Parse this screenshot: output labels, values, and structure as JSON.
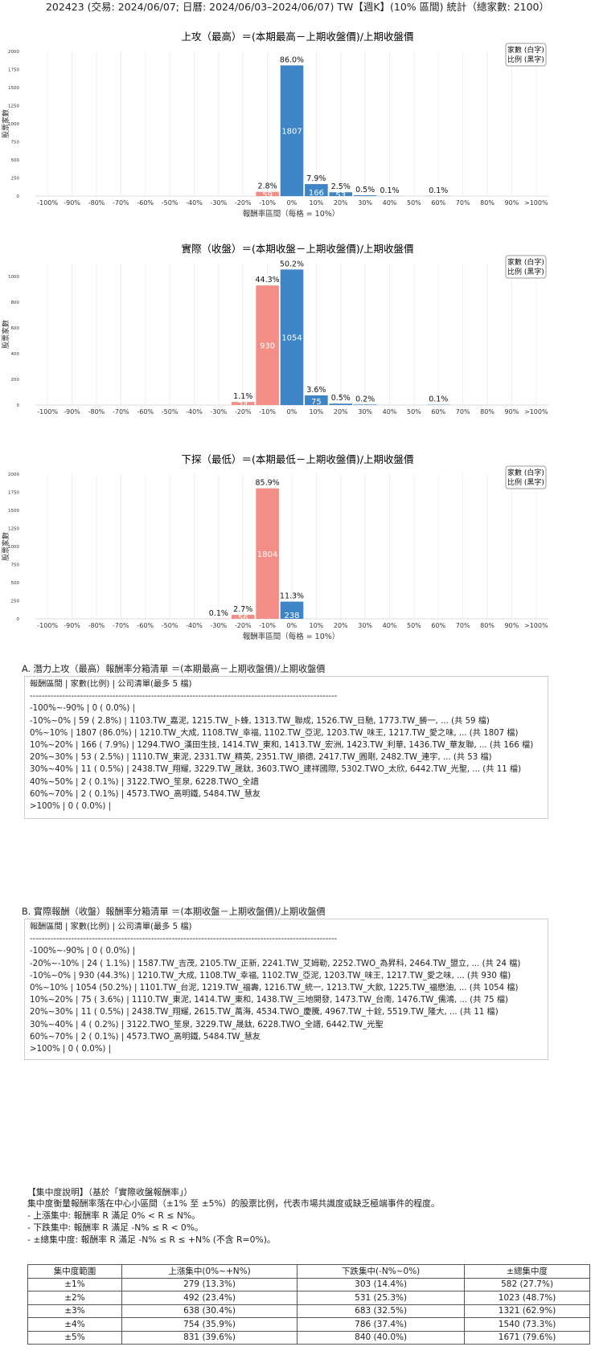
{
  "title": "202423 (交易: 2024/06/07; 日曆: 2024/06/03–2024/06/07) TW【週K】(10% 區間) 統計（總家數: 2100）",
  "colors": {
    "positive": "#3d85c6",
    "negative": "#f28e86",
    "grid": "#eeeeee"
  },
  "legend": [
    "家數 (白字)",
    "比例 (黑字)"
  ],
  "chart_data": [
    {
      "type": "bar",
      "title": "上攻（最高）＝(本期最高－上期收盤價)/上期收盤價",
      "xlabel": "報酬率區間（每格 = 10%）",
      "ylabel": "股票家數",
      "categories": [
        "-100%",
        "-90%",
        "-80%",
        "-70%",
        "-60%",
        "-50%",
        "-40%",
        "-30%",
        "-20%",
        "-10%",
        "0%",
        "10%",
        "20%",
        "30%",
        "40%",
        "50%",
        "60%",
        "70%",
        "80%",
        "90%",
        ">100%"
      ],
      "values": [
        0,
        0,
        0,
        0,
        0,
        0,
        0,
        0,
        0,
        59,
        1807,
        166,
        53,
        11,
        2,
        0,
        2,
        0,
        0,
        0,
        0
      ],
      "pct_labels": [
        "",
        "",
        "",
        "",
        "",
        "",
        "",
        "",
        "",
        "2.8%",
        "86.0%",
        "7.9%",
        "2.5%",
        "0.5%",
        "0.1%",
        "",
        "0.1%",
        "",
        "",
        "",
        ""
      ],
      "count_labels": [
        "",
        "",
        "",
        "",
        "",
        "",
        "",
        "",
        "",
        "59",
        "1807",
        "166",
        "53",
        "",
        "",
        "",
        "",
        "",
        "",
        "",
        ""
      ],
      "yticks": [
        0,
        250,
        500,
        750,
        1000,
        1250,
        1500,
        1750,
        2000
      ],
      "ylim": [
        0,
        2000
      ]
    },
    {
      "type": "bar",
      "title": "實際（收盤）＝(本期收盤－上期收盤價)/上期收盤價",
      "xlabel": "",
      "ylabel": "股票家數",
      "categories": [
        "-100%",
        "-90%",
        "-80%",
        "-70%",
        "-60%",
        "-50%",
        "-40%",
        "-30%",
        "-20%",
        "-10%",
        "0%",
        "10%",
        "20%",
        "30%",
        "40%",
        "50%",
        "60%",
        "70%",
        "80%",
        "90%",
        ">100%"
      ],
      "values": [
        0,
        0,
        0,
        0,
        0,
        0,
        0,
        0,
        24,
        930,
        1054,
        75,
        11,
        4,
        0,
        0,
        2,
        0,
        0,
        0,
        0
      ],
      "pct_labels": [
        "",
        "",
        "",
        "",
        "",
        "",
        "",
        "",
        "1.1%",
        "44.3%",
        "50.2%",
        "3.6%",
        "0.5%",
        "0.2%",
        "",
        "",
        "0.1%",
        "",
        "",
        "",
        ""
      ],
      "count_labels": [
        "",
        "",
        "",
        "",
        "",
        "",
        "",
        "",
        "24",
        "930",
        "1054",
        "75",
        "",
        "",
        "",
        "",
        "",
        "",
        "",
        "",
        ""
      ],
      "yticks": [
        0,
        200,
        400,
        600,
        800,
        1000
      ],
      "ylim": [
        0,
        1100
      ]
    },
    {
      "type": "bar",
      "title": "下探（最低）＝(本期最低－上期收盤價)/上期收盤價",
      "xlabel": "報酬率區間（每格 = 10%）",
      "ylabel": "股票家數",
      "categories": [
        "-100%",
        "-90%",
        "-80%",
        "-70%",
        "-60%",
        "-50%",
        "-40%",
        "-30%",
        "-20%",
        "-10%",
        "0%",
        "10%",
        "20%",
        "30%",
        "40%",
        "50%",
        "60%",
        "70%",
        "80%",
        "90%",
        ">100%"
      ],
      "values": [
        0,
        0,
        0,
        0,
        0,
        0,
        0,
        2,
        56,
        1804,
        238,
        0,
        0,
        0,
        0,
        0,
        0,
        0,
        0,
        0,
        0
      ],
      "pct_labels": [
        "",
        "",
        "",
        "",
        "",
        "",
        "",
        "0.1%",
        "2.7%",
        "85.9%",
        "11.3%",
        "",
        "",
        "",
        "",
        "",
        "",
        "",
        "",
        "",
        ""
      ],
      "count_labels": [
        "",
        "",
        "",
        "",
        "",
        "",
        "",
        "",
        "56",
        "1804",
        "238",
        "",
        "",
        "",
        "",
        "",
        "",
        "",
        "",
        "",
        ""
      ],
      "yticks": [
        0,
        250,
        500,
        750,
        1000,
        1250,
        1500,
        1750,
        2000
      ],
      "ylim": [
        0,
        2000
      ]
    }
  ],
  "section_a": {
    "title": "A. 潛力上攻（最高）報酬率分箱清單 ＝(本期最高－上期收盤價)/上期收盤價",
    "lines": [
      "報酬區間     | 家數(比例)       | 公司清單(最多 5 檔)",
      "--------------------------------------------------------------------------------------------------------",
      "-100%~-90%   |    0 ( 0.0%) |",
      "-10%~0%      |   59 ( 2.8%) | 1103.TW_嘉泥, 1215.TW_卜蜂, 1313.TW_聯成, 1526.TW_日馳, 1773.TW_勝一, ... (共 59 檔)",
      "0%~10%       | 1807 (86.0%) | 1210.TW_大成, 1108.TW_幸福, 1102.TW_亞泥, 1203.TW_味王, 1217.TW_愛之味, ... (共 1807 檔)",
      "10%~20%      |  166 ( 7.9%) | 1294.TWO_漢田生技, 1414.TW_東和, 1413.TW_宏洲, 1423.TW_利華, 1436.TW_華友聯, ... (共 166 檔)",
      "20%~30%      |   53 ( 2.5%) | 1110.TW_東泥, 2331.TW_精英, 2351.TW_順德, 2417.TW_圓剛, 2482.TW_連宇, ... (共 53 檔)",
      "30%~40%      |   11 ( 0.5%) | 2438.TW_翔耀, 3229.TW_晟鈦, 3603.TWO_建祥國際, 5302.TWO_太欣, 6442.TW_光聖, ... (共 11 檔)",
      "40%~50%      |    2 ( 0.1%) | 3122.TWO_笙泉, 6228.TWO_全譜",
      "60%~70%      |    2 ( 0.1%) | 4573.TWO_高明鐵, 5484.TW_慧友",
      ">100%        |    0 ( 0.0%) |"
    ]
  },
  "section_b": {
    "title": "B. 實際報酬（收盤）報酬率分箱清單 ＝(本期收盤－上期收盤價)/上期收盤價",
    "lines": [
      "報酬區間     | 家數(比例)       | 公司清單(最多 5 檔)",
      "--------------------------------------------------------------------------------------------------------",
      "-100%~-90%   |    0 ( 0.0%) |",
      "-20%~-10%    |   24 ( 1.1%) | 1587.TW_吉茂, 2105.TW_正新, 2241.TW_艾姆勒, 2252.TWO_為昇科, 2464.TW_盟立, ... (共 24 檔)",
      "-10%~0%      |  930 (44.3%) | 1210.TW_大成, 1108.TW_幸福, 1102.TW_亞泥, 1203.TW_味王, 1217.TW_愛之味, ... (共 930 檔)",
      "0%~10%       | 1054 (50.2%) | 1101.TW_台泥, 1219.TW_福壽, 1216.TW_統一, 1213.TW_大飲, 1225.TW_福懋油, ... (共 1054 檔)",
      "10%~20%      |   75 ( 3.6%) | 1110.TW_東泥, 1414.TW_東和, 1438.TW_三地開發, 1473.TW_台南, 1476.TW_儒鴻, ... (共 75 檔)",
      "20%~30%      |   11 ( 0.5%) | 2438.TW_翔耀, 2615.TW_萬海, 4534.TWO_慶騰, 4967.TW_十銓, 5519.TW_隆大, ... (共 11 檔)",
      "30%~40%      |    4 ( 0.2%) | 3122.TWO_笙泉, 3229.TW_晟鈦, 6228.TWO_全譜, 6442.TW_光聖",
      "60%~70%      |    2 ( 0.1%) | 4573.TWO_高明鐵, 5484.TW_慧友",
      ">100%        |    0 ( 0.0%) |"
    ]
  },
  "concentration": {
    "heading": "【集中度說明】（基於「實際收盤報酬率」）",
    "desc": "集中度衡量報酬率落在中心小區間（±1% 至 ±5%）的股票比例，代表市場共識度或缺乏極端事件的程度。",
    "items": [
      "- 上漲集中: 報酬率 R 滿足 0% < R ≤ N%。",
      "- 下跌集中: 報酬率 R 滿足 -N% ≤ R < 0%。",
      "- ±總集中度: 報酬率 R 滿足 -N% ≤ R ≤ +N% (不含 R=0%)。"
    ],
    "headers": [
      "集中度範圍",
      "上漲集中(0%~+N%)",
      "下跌集中(-N%~0%)",
      "±總集中度"
    ],
    "rows": [
      [
        "±1%",
        "279 (13.3%)",
        "303 (14.4%)",
        "582 (27.7%)"
      ],
      [
        "±2%",
        "492 (23.4%)",
        "531 (25.3%)",
        "1023 (48.7%)"
      ],
      [
        "±3%",
        "638 (30.4%)",
        "683 (32.5%)",
        "1321 (62.9%)"
      ],
      [
        "±4%",
        "754 (35.9%)",
        "786 (37.4%)",
        "1540 (73.3%)"
      ],
      [
        "±5%",
        "831 (39.6%)",
        "840 (40.0%)",
        "1671 (79.6%)"
      ]
    ]
  }
}
